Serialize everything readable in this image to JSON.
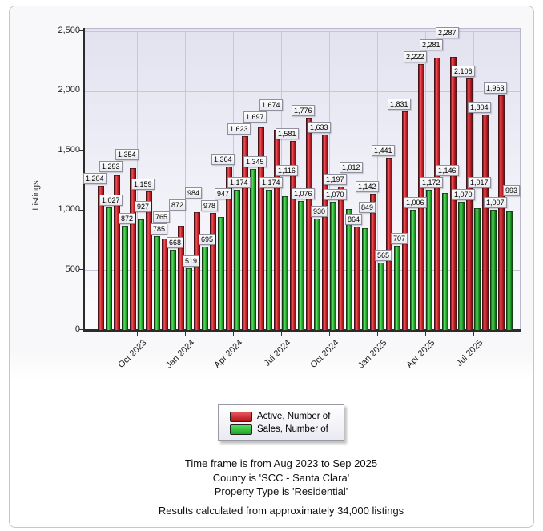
{
  "chart_data": {
    "type": "bar",
    "title": "",
    "categories": [
      "Aug 2023",
      "Sep 2023",
      "Oct 2023",
      "Nov 2023",
      "Dec 2023",
      "Jan 2024",
      "Feb 2024",
      "Mar 2024",
      "Apr 2024",
      "May 2024",
      "Jun 2024",
      "Jul 2024",
      "Aug 2024",
      "Sep 2024",
      "Oct 2024",
      "Nov 2024",
      "Dec 2024",
      "Jan 2025",
      "Feb 2025",
      "Mar 2025",
      "Apr 2025",
      "May 2025",
      "Jun 2025",
      "Jul 2025",
      "Aug 2025",
      "Sep 2025"
    ],
    "series": [
      {
        "name": "Active, Number of",
        "values": [
          1204,
          1293,
          1354,
          1159,
          765,
          872,
          984,
          978,
          1364,
          1623,
          1697,
          1674,
          1581,
          1776,
          1633,
          1197,
          864,
          1142,
          1441,
          1831,
          2222,
          2281,
          2287,
          2106,
          1804,
          1963
        ]
      },
      {
        "name": "Sales, Number of",
        "values": [
          1027,
          872,
          927,
          785,
          668,
          519,
          695,
          947,
          1174,
          1345,
          1174,
          1116,
          1076,
          930,
          1070,
          1012,
          849,
          565,
          707,
          1006,
          1172,
          1146,
          1070,
          1017,
          1007,
          993
        ]
      }
    ],
    "xlabel": "",
    "ylabel": "Listings",
    "ylim": [
      0,
      2500
    ],
    "y_tick_values": [
      0,
      500,
      1000,
      1500,
      2000,
      2500
    ],
    "y_tick_labels": [
      "0",
      "500",
      "1,000",
      "1,500",
      "2,000",
      "2,500"
    ],
    "x_tick_labels_shown": [
      "Oct 2023",
      "Jan 2024",
      "Apr 2024",
      "Jul 2024",
      "Oct 2024",
      "Jan 2025",
      "Apr 2025",
      "Jul 2025"
    ],
    "grid": true,
    "bar_value_labels": true,
    "legend_position": "bottom"
  },
  "colors": {
    "active_bar": "#cc2229",
    "sales_bar": "#2eb835",
    "plot_bg_top": "#e2e2f0",
    "plot_bg_bottom": "#fbfbfe",
    "gridline": "#c7c7d8"
  },
  "footer": {
    "line1": "Time frame is from Aug 2023 to Sep 2025",
    "line2": "County is 'SCC - Santa Clara'",
    "line3": "Property Type is 'Residential'",
    "line4": "Results calculated from approximately 34,000 listings"
  }
}
